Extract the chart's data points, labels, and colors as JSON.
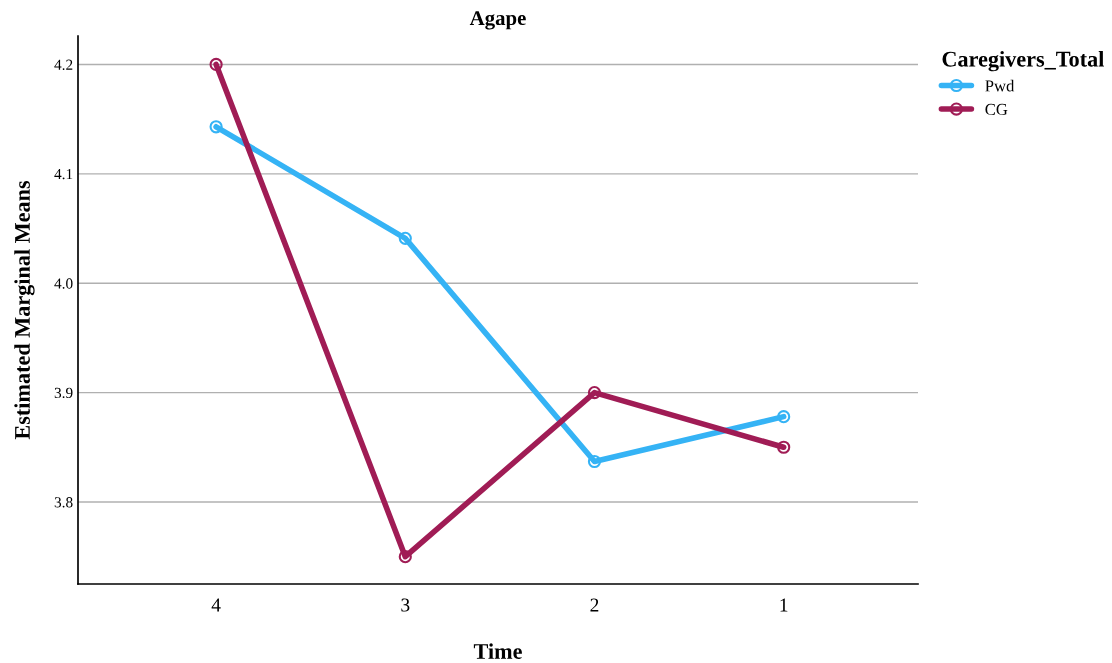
{
  "chart_data": {
    "type": "line",
    "title": "Agape",
    "xlabel": "Time",
    "ylabel": "Estimated Marginal Means",
    "legend_title": "Caregivers_Total",
    "categories": [
      "4",
      "3",
      "2",
      "1"
    ],
    "series": [
      {
        "name": "Pwd",
        "color": "#35b3f5",
        "values": [
          4.143,
          4.041,
          3.837,
          3.878
        ]
      },
      {
        "name": "CG",
        "color": "#a01c55",
        "values": [
          4.2,
          3.75,
          3.9,
          3.85
        ]
      }
    ],
    "ylim": [
      3.725,
      4.226
    ],
    "yticks": [
      {
        "value": 3.8,
        "label": "3.8"
      },
      {
        "value": 3.9,
        "label": "3.9"
      },
      {
        "value": 4.0,
        "label": "4.0"
      },
      {
        "value": 4.1,
        "label": "4.1"
      },
      {
        "value": 4.2,
        "label": "4.2"
      }
    ],
    "grid": "y",
    "legend": "top right",
    "marker": "circle",
    "line_style": "solid"
  }
}
